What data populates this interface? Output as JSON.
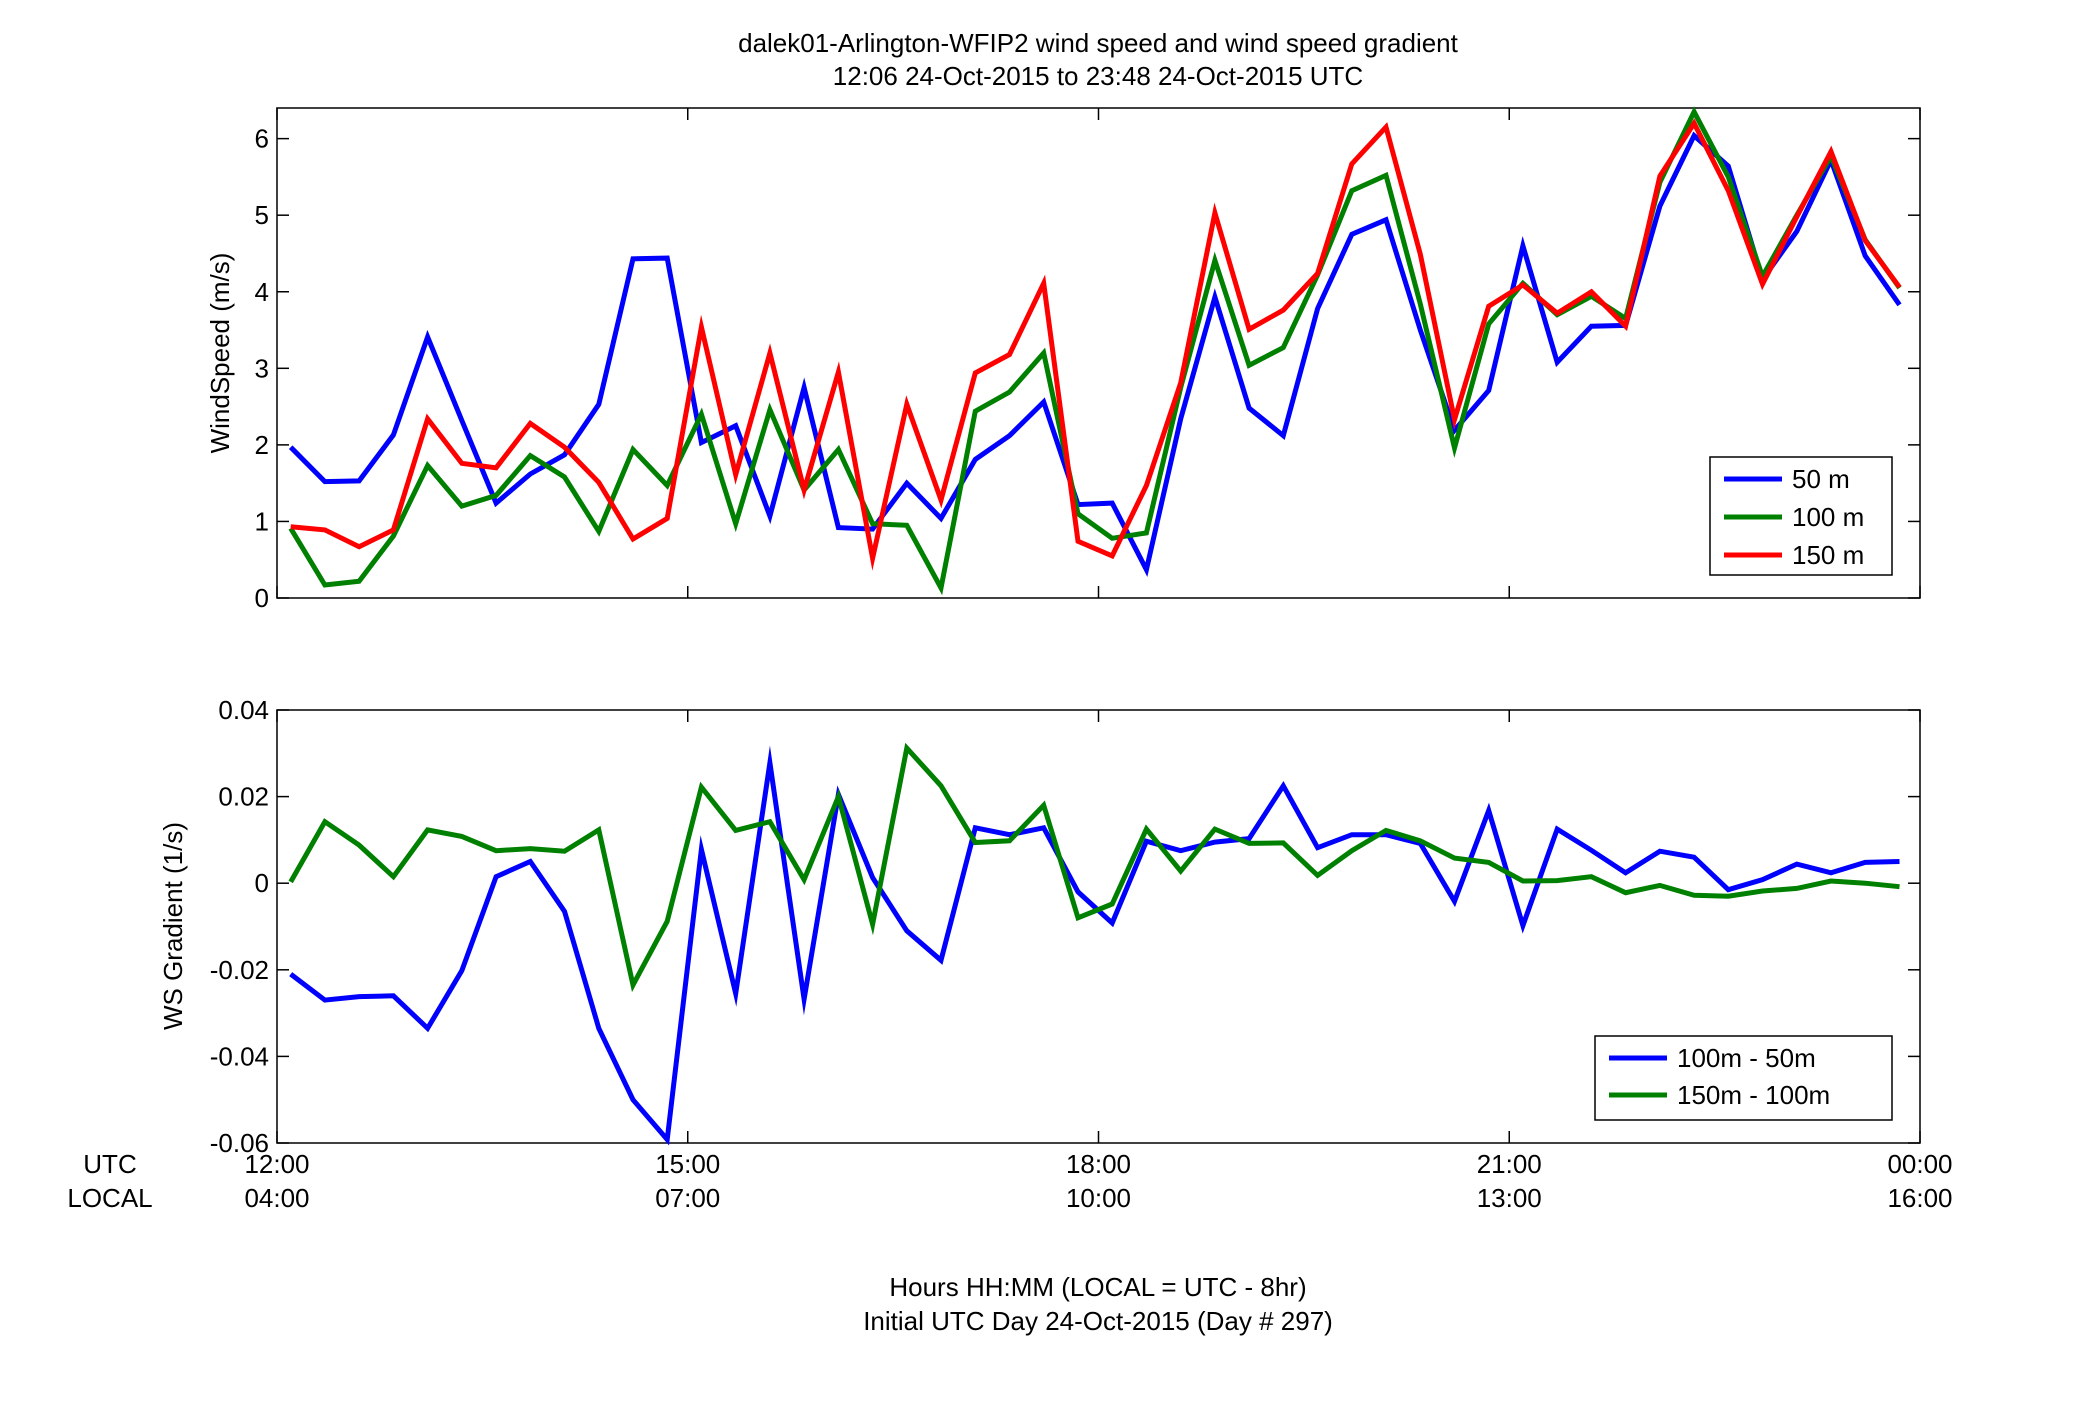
{
  "figure": {
    "title_line1": "dalek01-Arlington-WFIP2  wind speed and wind speed gradient",
    "title_line2": "12:06 24-Oct-2015 to 23:48 24-Oct-2015  UTC",
    "xlabel_line1": "Hours HH:MM  (LOCAL = UTC - 8hr)",
    "xlabel_line2": "Initial UTC Day 24-Oct-2015 (Day # 297)",
    "row_label_utc": "UTC",
    "row_label_local": "LOCAL",
    "utc_ticks": [
      "12:00",
      "15:00",
      "18:00",
      "21:00",
      "00:00"
    ],
    "local_ticks": [
      "04:00",
      "07:00",
      "10:00",
      "13:00",
      "16:00"
    ]
  },
  "chart_data": [
    {
      "type": "line",
      "ylabel": "WindSpeed (m/s)",
      "xlim": [
        12,
        24
      ],
      "ylim": [
        0,
        6.4
      ],
      "yticks": [
        0,
        1,
        2,
        3,
        4,
        5,
        6
      ],
      "ytick_labels": [
        "0",
        "1",
        "2",
        "3",
        "4",
        "5",
        "6"
      ],
      "legend_position": "lower-right",
      "x": [
        12.1,
        12.35,
        12.6,
        12.85,
        13.1,
        13.35,
        13.6,
        13.85,
        14.1,
        14.35,
        14.6,
        14.85,
        15.1,
        15.35,
        15.6,
        15.85,
        16.1,
        16.35,
        16.6,
        16.85,
        17.1,
        17.35,
        17.6,
        17.85,
        18.1,
        18.35,
        18.6,
        18.85,
        19.1,
        19.35,
        19.6,
        19.85,
        20.1,
        20.35,
        20.6,
        20.85,
        21.1,
        21.35,
        21.6,
        21.85,
        22.1,
        22.35,
        22.6,
        22.85,
        23.1,
        23.35,
        23.6,
        23.85
      ],
      "series": [
        {
          "name": "50 m",
          "color": "#0000ff",
          "values": [
            1.97,
            1.52,
            1.53,
            2.13,
            3.41,
            2.32,
            1.24,
            1.62,
            1.87,
            2.53,
            4.43,
            4.44,
            2.03,
            2.25,
            1.07,
            2.75,
            0.92,
            0.9,
            1.5,
            1.04,
            1.81,
            2.12,
            2.56,
            1.22,
            1.24,
            0.37,
            2.34,
            3.93,
            2.48,
            2.12,
            3.78,
            4.75,
            4.94,
            3.5,
            2.19,
            2.71,
            4.6,
            3.08,
            3.55,
            3.56,
            5.12,
            6.04,
            5.64,
            4.16,
            4.79,
            5.72,
            4.47,
            3.83
          ]
        },
        {
          "name": "100 m",
          "color": "#008000",
          "values": [
            0.91,
            0.17,
            0.22,
            0.81,
            1.73,
            1.2,
            1.34,
            1.86,
            1.58,
            0.87,
            1.94,
            1.47,
            2.4,
            0.97,
            2.46,
            1.41,
            1.94,
            0.97,
            0.95,
            0.13,
            2.44,
            2.69,
            3.2,
            1.1,
            0.78,
            0.85,
            2.75,
            4.41,
            3.04,
            3.27,
            4.22,
            5.32,
            5.52,
            3.84,
            1.96,
            3.58,
            4.11,
            3.7,
            3.94,
            3.65,
            5.43,
            6.35,
            5.5,
            4.2,
            5.0,
            5.77,
            4.68,
            4.05
          ]
        },
        {
          "name": "150 m",
          "color": "#ff0000",
          "values": [
            0.93,
            0.89,
            0.67,
            0.89,
            2.34,
            1.76,
            1.7,
            2.28,
            1.97,
            1.51,
            0.77,
            1.04,
            3.54,
            1.61,
            3.2,
            1.41,
            2.95,
            0.52,
            2.53,
            1.28,
            2.94,
            3.18,
            4.11,
            0.74,
            0.55,
            1.47,
            2.81,
            5.03,
            3.51,
            3.76,
            4.24,
            5.67,
            6.15,
            4.49,
            2.33,
            3.81,
            4.09,
            3.72,
            4.0,
            3.55,
            5.51,
            6.2,
            5.32,
            4.1,
            4.98,
            5.83,
            4.67,
            4.06
          ]
        }
      ]
    },
    {
      "type": "line",
      "ylabel": "WS Gradient (1/s)",
      "xlim": [
        12,
        24
      ],
      "ylim": [
        -0.06,
        0.04
      ],
      "yticks": [
        -0.06,
        -0.04,
        -0.02,
        0,
        0.02,
        0.04
      ],
      "ytick_labels": [
        "-0.06",
        "-0.04",
        "-0.02",
        "0",
        "0.02",
        "0.04"
      ],
      "legend_position": "lower-right",
      "x": [
        12.1,
        12.35,
        12.6,
        12.85,
        13.1,
        13.35,
        13.6,
        13.85,
        14.1,
        14.35,
        14.6,
        14.85,
        15.1,
        15.35,
        15.6,
        15.85,
        16.1,
        16.35,
        16.6,
        16.85,
        17.1,
        17.35,
        17.6,
        17.85,
        18.1,
        18.35,
        18.6,
        18.85,
        19.1,
        19.35,
        19.6,
        19.85,
        20.1,
        20.35,
        20.6,
        20.85,
        21.1,
        21.35,
        21.6,
        21.85,
        22.1,
        22.35,
        22.6,
        22.85,
        23.1,
        23.35,
        23.6,
        23.85
      ],
      "series": [
        {
          "name": "100m - 50m",
          "color": "#0000ff",
          "values": [
            -0.021,
            -0.027,
            -0.0262,
            -0.026,
            -0.0335,
            -0.0202,
            0.0015,
            0.005,
            -0.0065,
            -0.0335,
            -0.05,
            -0.0592,
            0.0078,
            -0.0255,
            0.0278,
            -0.0268,
            0.0205,
            0.0013,
            -0.011,
            -0.0178,
            0.0128,
            0.0112,
            0.0128,
            -0.002,
            -0.0092,
            0.0097,
            0.0075,
            0.0095,
            0.0103,
            0.0225,
            0.0082,
            0.0112,
            0.0112,
            0.0092,
            -0.0042,
            0.0168,
            -0.0098,
            0.0125,
            0.0076,
            0.0024,
            0.0074,
            0.006,
            -0.0015,
            0.0008,
            0.0044,
            0.0024,
            0.0048,
            0.005
          ]
        },
        {
          "name": "150m - 100m",
          "color": "#008000",
          "values": [
            0.0003,
            0.0142,
            0.0088,
            0.0015,
            0.0123,
            0.0108,
            0.0075,
            0.008,
            0.0074,
            0.0123,
            -0.0235,
            -0.0088,
            0.0222,
            0.0122,
            0.0142,
            0.0008,
            0.02,
            -0.0095,
            0.0312,
            0.0225,
            0.0094,
            0.0098,
            0.018,
            -0.008,
            -0.0048,
            0.0125,
            0.0028,
            0.0125,
            0.0092,
            0.0093,
            0.0018,
            0.0075,
            0.0122,
            0.0098,
            0.0058,
            0.0048,
            0.0005,
            0.0006,
            0.0015,
            -0.0022,
            -0.0005,
            -0.0028,
            -0.003,
            -0.0018,
            -0.0012,
            0.0005,
            0.0,
            -0.0008
          ]
        }
      ]
    }
  ]
}
